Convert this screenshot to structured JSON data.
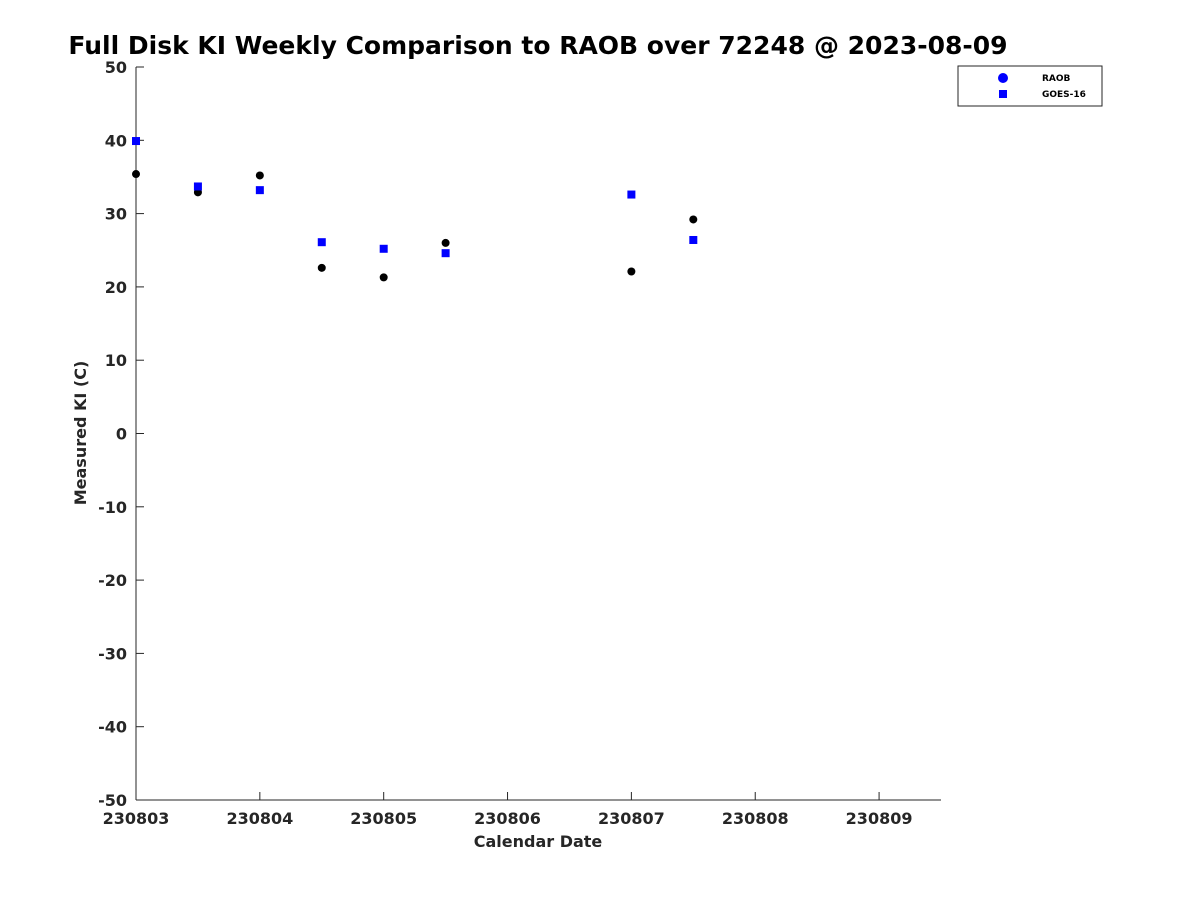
{
  "chart_data": {
    "type": "scatter",
    "title": "Full Disk KI Weekly Comparison to RAOB over 72248 @ 2023-08-09",
    "xlabel": "Calendar Date",
    "ylabel": "Measured KI (C)",
    "xlim": [
      "230803",
      "230809.5"
    ],
    "ylim": [
      -50,
      50
    ],
    "x_ticks": [
      "230803",
      "230804",
      "230805",
      "230806",
      "230807",
      "230808",
      "230809"
    ],
    "y_ticks": [
      50,
      40,
      30,
      20,
      10,
      0,
      -10,
      -20,
      -30,
      -40,
      -50
    ],
    "grid": false,
    "legend_position": "top-right",
    "series": [
      {
        "name": "RAOB",
        "marker": "circle",
        "color": "#000000",
        "legend_color": "#0000ff",
        "points": [
          {
            "x": "230803.0",
            "y": 35.4
          },
          {
            "x": "230803.5",
            "y": 32.9
          },
          {
            "x": "230804.0",
            "y": 35.2
          },
          {
            "x": "230804.5",
            "y": 22.6
          },
          {
            "x": "230805.0",
            "y": 21.3
          },
          {
            "x": "230805.5",
            "y": 26.0
          },
          {
            "x": "230807.0",
            "y": 22.1
          },
          {
            "x": "230807.5",
            "y": 29.2
          }
        ]
      },
      {
        "name": "GOES-16",
        "marker": "square",
        "color": "#0000ff",
        "legend_color": "#0000ff",
        "points": [
          {
            "x": "230803.0",
            "y": 39.9
          },
          {
            "x": "230803.5",
            "y": 33.7
          },
          {
            "x": "230804.0",
            "y": 33.2
          },
          {
            "x": "230804.5",
            "y": 26.1
          },
          {
            "x": "230805.0",
            "y": 25.2
          },
          {
            "x": "230805.5",
            "y": 24.6
          },
          {
            "x": "230807.0",
            "y": 32.6
          },
          {
            "x": "230807.5",
            "y": 26.4
          }
        ]
      }
    ]
  }
}
